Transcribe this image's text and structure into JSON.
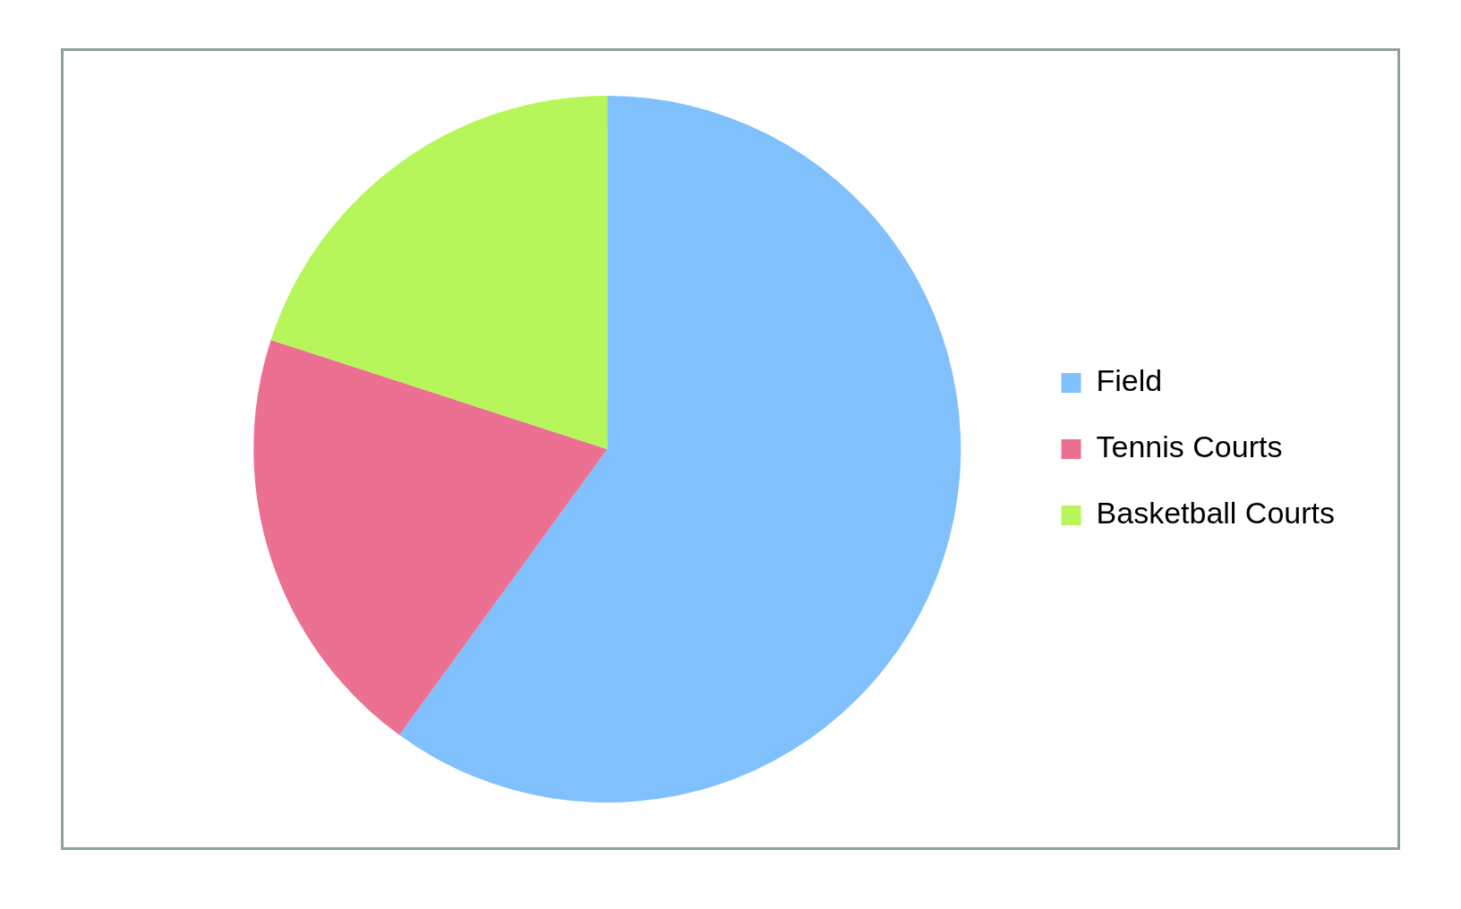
{
  "chart_data": {
    "type": "pie",
    "categories": [
      "Field",
      "Tennis Courts",
      "Basketball Courts"
    ],
    "values": [
      60,
      20,
      20
    ],
    "colors": [
      "#80c0fc",
      "#ec7092",
      "#b6f65a"
    ],
    "legend": "right"
  }
}
